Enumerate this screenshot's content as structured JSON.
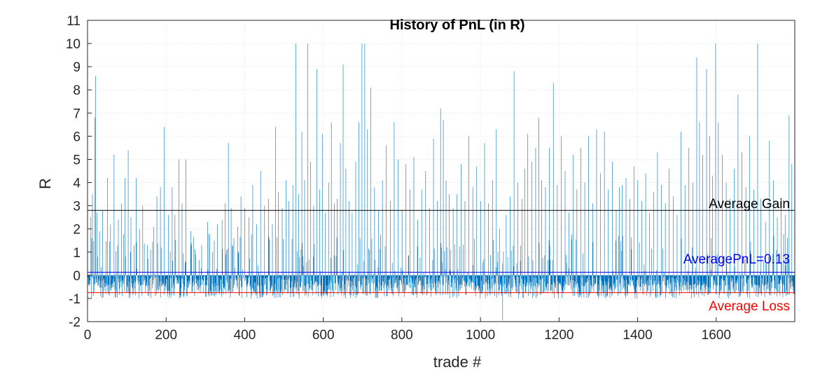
{
  "chart_data": {
    "type": "bar",
    "title": "History of PnL (in R)",
    "xlabel": "trade #",
    "ylabel": "R",
    "xlim": [
      0,
      1800
    ],
    "ylim": [
      -2,
      11
    ],
    "grid": true,
    "xticks": [
      0,
      200,
      400,
      600,
      800,
      1000,
      1200,
      1400,
      1600
    ],
    "yticks": [
      -2,
      -1,
      0,
      1,
      2,
      3,
      4,
      5,
      6,
      7,
      8,
      9,
      10,
      11
    ],
    "colors": {
      "bars": "#0072BD",
      "average_gain": "#000000",
      "average_pnl": "#0000FF",
      "average_loss": "#FF0000"
    },
    "reference_lines": [
      {
        "name": "average_gain",
        "label": "Average Gain",
        "value": 2.8
      },
      {
        "name": "average_pnl",
        "label": "AveragePnL=0.13",
        "value": 0.13
      },
      {
        "name": "average_loss",
        "label": "Average Loss",
        "value": -0.75
      }
    ],
    "series": [
      {
        "peaks": [
          [
            8,
            2.5
          ],
          [
            12,
            3.5
          ],
          [
            18,
            6.8
          ],
          [
            20,
            8.6
          ],
          [
            24,
            2.7
          ],
          [
            30,
            1.9
          ],
          [
            38,
            2.8
          ],
          [
            50,
            4.2
          ],
          [
            58,
            2.2
          ],
          [
            67,
            5.2
          ],
          [
            78,
            2.4
          ],
          [
            86,
            3.1
          ],
          [
            95,
            4.2
          ],
          [
            103,
            5.4
          ],
          [
            110,
            2.5
          ],
          [
            118,
            1.3
          ],
          [
            123,
            4.2
          ],
          [
            132,
            2.0
          ],
          [
            140,
            3.0
          ],
          [
            152,
            1.3
          ],
          [
            160,
            1.1
          ],
          [
            168,
            2.1
          ],
          [
            176,
            3.4
          ],
          [
            185,
            3.8
          ],
          [
            195,
            6.4
          ],
          [
            205,
            2.6
          ],
          [
            215,
            3.8
          ],
          [
            222,
            2.6
          ],
          [
            232,
            5.0
          ],
          [
            240,
            3.1
          ],
          [
            250,
            5.0
          ],
          [
            262,
            1.9
          ],
          [
            275,
            0.9
          ],
          [
            290,
            1.3
          ],
          [
            305,
            2.3
          ],
          [
            318,
            1.0
          ],
          [
            330,
            2.2
          ],
          [
            342,
            2.4
          ],
          [
            350,
            3.1
          ],
          [
            358,
            5.7
          ],
          [
            365,
            2.9
          ],
          [
            372,
            1.6
          ],
          [
            382,
            2.1
          ],
          [
            390,
            3.4
          ],
          [
            400,
            2.9
          ],
          [
            410,
            2.5
          ],
          [
            420,
            3.9
          ],
          [
            430,
            2.2
          ],
          [
            440,
            4.5
          ],
          [
            450,
            3.0
          ],
          [
            460,
            3.3
          ],
          [
            470,
            2.2
          ],
          [
            478,
            6.4
          ],
          [
            485,
            3.6
          ],
          [
            495,
            2.9
          ],
          [
            505,
            4.1
          ],
          [
            512,
            3.2
          ],
          [
            522,
            3.9
          ],
          [
            530,
            10.0
          ],
          [
            537,
            3.5
          ],
          [
            545,
            6.2
          ],
          [
            552,
            4.1
          ],
          [
            560,
            10.0
          ],
          [
            567,
            4.9
          ],
          [
            575,
            3.0
          ],
          [
            583,
            8.9
          ],
          [
            590,
            3.7
          ],
          [
            597,
            6.1
          ],
          [
            605,
            2.7
          ],
          [
            613,
            4.0
          ],
          [
            620,
            6.6
          ],
          [
            628,
            3.1
          ],
          [
            635,
            3.3
          ],
          [
            643,
            5.7
          ],
          [
            650,
            9.1
          ],
          [
            657,
            4.6
          ],
          [
            665,
            3.2
          ],
          [
            673,
            2.7
          ],
          [
            682,
            4.9
          ],
          [
            690,
            6.6
          ],
          [
            698,
            10.0
          ],
          [
            705,
            10.0
          ],
          [
            712,
            6.3
          ],
          [
            720,
            8.1
          ],
          [
            730,
            3.8
          ],
          [
            740,
            2.8
          ],
          [
            750,
            4.1
          ],
          [
            760,
            5.6
          ],
          [
            770,
            3.2
          ],
          [
            780,
            6.6
          ],
          [
            790,
            5.0
          ],
          [
            800,
            2.8
          ],
          [
            810,
            4.8
          ],
          [
            820,
            3.7
          ],
          [
            830,
            5.1
          ],
          [
            840,
            2.4
          ],
          [
            850,
            3.7
          ],
          [
            860,
            4.5
          ],
          [
            870,
            2.9
          ],
          [
            880,
            5.9
          ],
          [
            890,
            3.2
          ],
          [
            898,
            7.2
          ],
          [
            905,
            6.7
          ],
          [
            912,
            4.1
          ],
          [
            920,
            3.5
          ],
          [
            930,
            2.9
          ],
          [
            940,
            3.5
          ],
          [
            950,
            4.8
          ],
          [
            960,
            3.2
          ],
          [
            970,
            6.0
          ],
          [
            980,
            3.8
          ],
          [
            990,
            4.7
          ],
          [
            1000,
            3.2
          ],
          [
            1010,
            5.7
          ],
          [
            1020,
            3.1
          ],
          [
            1030,
            4.1
          ],
          [
            1040,
            6.3
          ],
          [
            1048,
            2.0
          ],
          [
            1055,
            0.5
          ],
          [
            1065,
            2.6
          ],
          [
            1075,
            3.4
          ],
          [
            1085,
            8.8
          ],
          [
            1095,
            4.0
          ],
          [
            1105,
            3.3
          ],
          [
            1112,
            4.6
          ],
          [
            1120,
            6.1
          ],
          [
            1130,
            4.9
          ],
          [
            1140,
            5.5
          ],
          [
            1148,
            6.8
          ],
          [
            1155,
            4.1
          ],
          [
            1165,
            3.8
          ],
          [
            1175,
            5.5
          ],
          [
            1185,
            8.3
          ],
          [
            1195,
            3.9
          ],
          [
            1205,
            6.0
          ],
          [
            1215,
            4.5
          ],
          [
            1225,
            2.7
          ],
          [
            1235,
            5.2
          ],
          [
            1245,
            3.7
          ],
          [
            1255,
            5.5
          ],
          [
            1265,
            4.0
          ],
          [
            1275,
            6.0
          ],
          [
            1285,
            3.1
          ],
          [
            1295,
            6.3
          ],
          [
            1305,
            4.4
          ],
          [
            1315,
            6.2
          ],
          [
            1325,
            3.7
          ],
          [
            1335,
            4.9
          ],
          [
            1345,
            2.8
          ],
          [
            1353,
            3.8
          ],
          [
            1360,
            3.9
          ],
          [
            1370,
            4.2
          ],
          [
            1380,
            3.3
          ],
          [
            1390,
            4.7
          ],
          [
            1400,
            4.1
          ],
          [
            1410,
            3.2
          ],
          [
            1420,
            4.4
          ],
          [
            1430,
            2.7
          ],
          [
            1440,
            3.6
          ],
          [
            1450,
            5.3
          ],
          [
            1460,
            3.9
          ],
          [
            1470,
            3.1
          ],
          [
            1480,
            4.6
          ],
          [
            1490,
            3.4
          ],
          [
            1500,
            2.6
          ],
          [
            1510,
            6.2
          ],
          [
            1520,
            3.9
          ],
          [
            1530,
            5.5
          ],
          [
            1540,
            4.0
          ],
          [
            1550,
            9.4
          ],
          [
            1557,
            6.6
          ],
          [
            1565,
            5.2
          ],
          [
            1575,
            8.9
          ],
          [
            1583,
            6.0
          ],
          [
            1590,
            4.3
          ],
          [
            1598,
            10.0
          ],
          [
            1605,
            6.6
          ],
          [
            1615,
            5.2
          ],
          [
            1625,
            4.0
          ],
          [
            1635,
            3.3
          ],
          [
            1645,
            4.6
          ],
          [
            1655,
            7.8
          ],
          [
            1665,
            5.3
          ],
          [
            1675,
            3.8
          ],
          [
            1685,
            6.0
          ],
          [
            1695,
            3.7
          ],
          [
            1705,
            10.0
          ],
          [
            1713,
            3.3
          ],
          [
            1725,
            2.3
          ],
          [
            1735,
            5.8
          ],
          [
            1745,
            4.1
          ],
          [
            1755,
            2.5
          ],
          [
            1765,
            3.3
          ],
          [
            1775,
            2.6
          ],
          [
            1785,
            6.9
          ],
          [
            1792,
            4.8
          ]
        ]
      }
    ]
  }
}
